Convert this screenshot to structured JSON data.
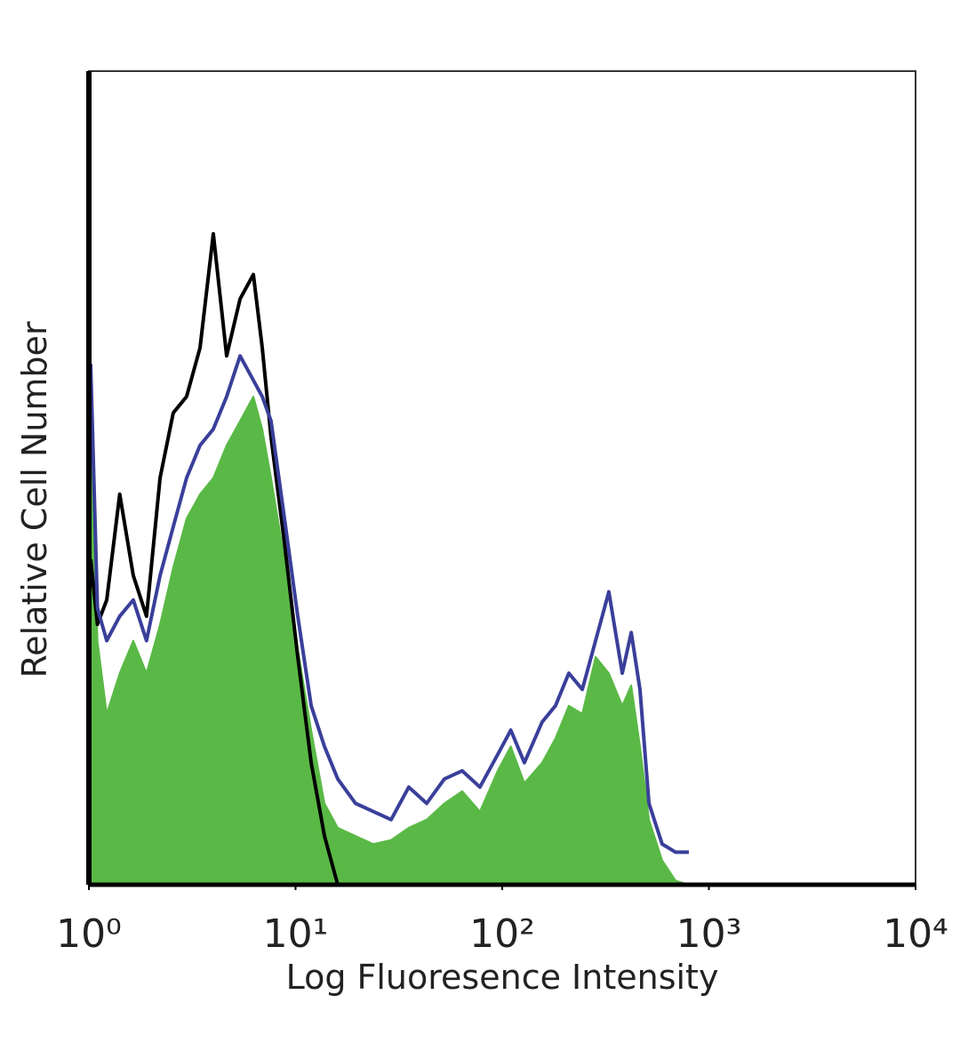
{
  "chart_data": {
    "type": "line",
    "xlabel": "Log Fluoresence Intensity",
    "ylabel": "Relative Cell Number",
    "xscale": "log",
    "xlim": [
      1,
      10000
    ],
    "ylim": [
      0,
      100
    ],
    "xticks": [
      {
        "value": 1,
        "label": "10⁰"
      },
      {
        "value": 10,
        "label": "10¹"
      },
      {
        "value": 100,
        "label": "10²"
      },
      {
        "value": 1000,
        "label": "10³"
      },
      {
        "value": 10000,
        "label": "10⁴"
      }
    ],
    "x": [
      1.02,
      1.1,
      1.22,
      1.41,
      1.64,
      1.9,
      2.21,
      2.56,
      2.97,
      3.45,
      4.0,
      4.64,
      5.39,
      6.25,
      6.9,
      7.61,
      8.84,
      10.25,
      11.9,
      13.8,
      16.0,
      19.5,
      23.8,
      29.0,
      35.3,
      43.1,
      52.5,
      64.0,
      78.0,
      95.1,
      110,
      128,
      156,
      181,
      210,
      244,
      283,
      328,
      381,
      421,
      464,
      513,
      594,
      690,
      800
    ],
    "series": [
      {
        "color": "#000000",
        "fill": false,
        "values": [
          40,
          32,
          35,
          48,
          38,
          33,
          50,
          58,
          60,
          66,
          80,
          65,
          72,
          75,
          66,
          55,
          42,
          28,
          15,
          6,
          0,
          null,
          null,
          null,
          null,
          null,
          null,
          null,
          null,
          null,
          null,
          null,
          null,
          null,
          null,
          null,
          null,
          null,
          null,
          null,
          null,
          null,
          null,
          null,
          null
        ]
      },
      {
        "color": "#3a3f9a",
        "fill": false,
        "values": [
          64,
          34,
          30,
          33,
          35,
          30,
          38,
          44,
          50,
          54,
          56,
          60,
          65,
          62,
          60,
          57,
          45,
          33,
          22,
          17,
          13,
          10,
          9,
          8,
          12,
          10,
          13,
          14,
          12,
          16,
          19,
          15,
          20,
          22,
          26,
          24,
          30,
          36,
          26,
          31,
          24,
          10,
          5,
          4,
          4
        ]
      },
      {
        "color": "#5ab946",
        "fill": true,
        "values": [
          64,
          30,
          21,
          26,
          30,
          26,
          32,
          39,
          45,
          48,
          50,
          54,
          57,
          60,
          56,
          50,
          40,
          29,
          19,
          10,
          7,
          6,
          5,
          5.5,
          7,
          8,
          10,
          11.5,
          9,
          14,
          17,
          12.5,
          15,
          18,
          22,
          21,
          28,
          26,
          22,
          24.5,
          17,
          8,
          3,
          0.5,
          0
        ]
      }
    ]
  }
}
